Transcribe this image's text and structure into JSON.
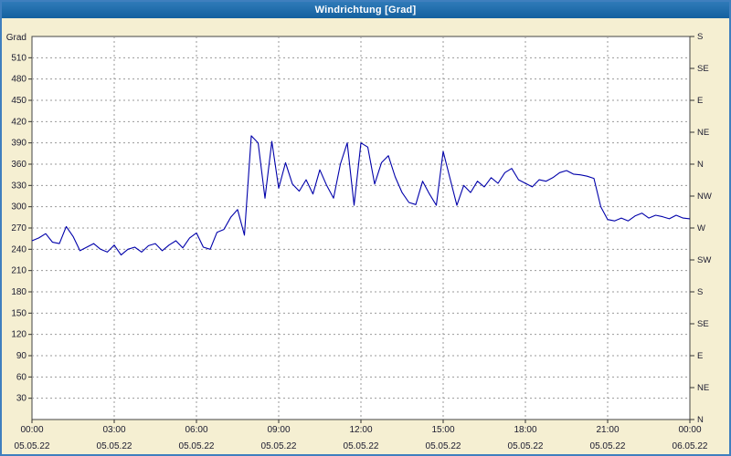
{
  "window": {
    "title": "Windrichtung [Grad]"
  },
  "colors": {
    "background": "#f5efd2",
    "titlebar": "#14619f",
    "titlebar_text": "#ffffff",
    "plot_bg": "#ffffff",
    "plot_border": "#444444",
    "grid": "#9a9a9a",
    "tick": "#333333",
    "label": "#1a1a2e",
    "line": "#0000aa",
    "outer_border": "#3f7fbe"
  },
  "chart_data": {
    "type": "line",
    "title": "Windrichtung [Grad]",
    "ylabel": "Grad",
    "ylim": [
      0,
      540
    ],
    "grid": true,
    "legend": "none",
    "y_ticks": [
      30,
      60,
      90,
      120,
      150,
      180,
      210,
      240,
      270,
      300,
      330,
      360,
      390,
      420,
      450,
      480,
      510
    ],
    "right_axis_labels": [
      {
        "grad": 540,
        "label": "S"
      },
      {
        "grad": 495,
        "label": "SE"
      },
      {
        "grad": 450,
        "label": "E"
      },
      {
        "grad": 405,
        "label": "NE"
      },
      {
        "grad": 360,
        "label": "N"
      },
      {
        "grad": 315,
        "label": "NW"
      },
      {
        "grad": 270,
        "label": "W"
      },
      {
        "grad": 225,
        "label": "SW"
      },
      {
        "grad": 180,
        "label": "S"
      },
      {
        "grad": 135,
        "label": "SE"
      },
      {
        "grad": 90,
        "label": "E"
      },
      {
        "grad": 45,
        "label": "NE"
      },
      {
        "grad": 0,
        "label": "N"
      }
    ],
    "x_range_hours": [
      0,
      24
    ],
    "x_ticks": [
      {
        "hour": 0,
        "time": "00:00",
        "date": "05.05.22"
      },
      {
        "hour": 3,
        "time": "03:00",
        "date": "05.05.22"
      },
      {
        "hour": 6,
        "time": "06:00",
        "date": "05.05.22"
      },
      {
        "hour": 9,
        "time": "09:00",
        "date": "05.05.22"
      },
      {
        "hour": 12,
        "time": "12:00",
        "date": "05.05.22"
      },
      {
        "hour": 15,
        "time": "15:00",
        "date": "05.05.22"
      },
      {
        "hour": 18,
        "time": "18:00",
        "date": "05.05.22"
      },
      {
        "hour": 21,
        "time": "21:00",
        "date": "05.05.22"
      },
      {
        "hour": 24,
        "time": "00:00",
        "date": "06.05.22"
      }
    ],
    "series": [
      {
        "name": "Windrichtung",
        "start_hour": 0,
        "step_hours": 0.25,
        "values": [
          252,
          256,
          262,
          250,
          248,
          272,
          258,
          238,
          243,
          248,
          240,
          236,
          246,
          232,
          240,
          243,
          236,
          245,
          248,
          238,
          246,
          252,
          242,
          256,
          263,
          243,
          240,
          264,
          268,
          285,
          296,
          260,
          400,
          390,
          312,
          392,
          326,
          362,
          332,
          322,
          338,
          318,
          352,
          330,
          312,
          360,
          390,
          302,
          390,
          384,
          332,
          362,
          372,
          342,
          320,
          306,
          303,
          336,
          318,
          302,
          378,
          340,
          302,
          330,
          320,
          336,
          328,
          341,
          333,
          348,
          354,
          338,
          333,
          328,
          338,
          336,
          341,
          348,
          351,
          346,
          345,
          343,
          340,
          300,
          282,
          280,
          284,
          280,
          287,
          291,
          284,
          288,
          286,
          283,
          288,
          284,
          283
        ]
      }
    ]
  }
}
